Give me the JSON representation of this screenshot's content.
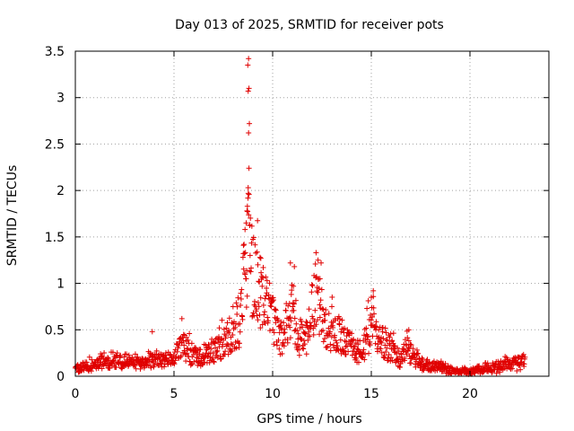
{
  "chart_data": {
    "type": "scatter",
    "title": "Day 013 of 2025, SRMTID for receiver pots",
    "xlabel": "GPS time / hours",
    "ylabel": "SRMTID / TECUs",
    "xlim": [
      0,
      24
    ],
    "ylim": [
      0,
      3.5
    ],
    "xticks": [
      0,
      5,
      10,
      15,
      20
    ],
    "yticks": [
      0,
      0.5,
      1,
      1.5,
      2,
      2.5,
      3,
      3.5
    ],
    "xtick_labels": [
      "0",
      "5",
      "10",
      "15",
      "20"
    ],
    "ytick_labels": [
      "0",
      "0.5",
      "1",
      "1.5",
      "2",
      "2.5",
      "3",
      "3.5"
    ],
    "grid": true,
    "marker": "+",
    "color": "#e00000",
    "series": [
      {
        "name": "SRMTID",
        "profile": [
          [
            0.0,
            0.08
          ],
          [
            0.5,
            0.11
          ],
          [
            1.0,
            0.13
          ],
          [
            1.5,
            0.15
          ],
          [
            2.0,
            0.16
          ],
          [
            2.5,
            0.15
          ],
          [
            3.0,
            0.14
          ],
          [
            3.5,
            0.15
          ],
          [
            4.0,
            0.17
          ],
          [
            4.5,
            0.16
          ],
          [
            5.0,
            0.2
          ],
          [
            5.4,
            0.34
          ],
          [
            5.8,
            0.26
          ],
          [
            6.2,
            0.2
          ],
          [
            6.6,
            0.22
          ],
          [
            7.0,
            0.28
          ],
          [
            7.5,
            0.36
          ],
          [
            8.0,
            0.42
          ],
          [
            8.3,
            0.55
          ],
          [
            8.5,
            0.9
          ],
          [
            8.75,
            1.5
          ],
          [
            9.0,
            1.05
          ],
          [
            9.3,
            0.95
          ],
          [
            9.6,
            0.8
          ],
          [
            10.0,
            0.6
          ],
          [
            10.4,
            0.42
          ],
          [
            10.7,
            0.55
          ],
          [
            11.0,
            0.75
          ],
          [
            11.3,
            0.45
          ],
          [
            11.7,
            0.4
          ],
          [
            12.0,
            0.7
          ],
          [
            12.3,
            0.85
          ],
          [
            12.6,
            0.55
          ],
          [
            13.0,
            0.5
          ],
          [
            13.4,
            0.45
          ],
          [
            13.8,
            0.35
          ],
          [
            14.2,
            0.28
          ],
          [
            14.6,
            0.3
          ],
          [
            15.0,
            0.55
          ],
          [
            15.3,
            0.4
          ],
          [
            15.7,
            0.35
          ],
          [
            16.0,
            0.3
          ],
          [
            16.4,
            0.17
          ],
          [
            16.8,
            0.28
          ],
          [
            17.2,
            0.2
          ],
          [
            17.6,
            0.12
          ],
          [
            18.0,
            0.1
          ],
          [
            18.4,
            0.13
          ],
          [
            18.8,
            0.07
          ],
          [
            19.2,
            0.05
          ],
          [
            19.6,
            0.05
          ],
          [
            20.0,
            0.05
          ],
          [
            20.5,
            0.07
          ],
          [
            21.0,
            0.09
          ],
          [
            21.5,
            0.11
          ],
          [
            22.0,
            0.13
          ],
          [
            22.5,
            0.15
          ],
          [
            22.8,
            0.17
          ]
        ],
        "spikes": [
          [
            8.78,
            3.42
          ],
          [
            8.74,
            3.35
          ],
          [
            8.8,
            3.1
          ],
          [
            8.76,
            3.07
          ],
          [
            8.82,
            2.72
          ],
          [
            8.78,
            2.62
          ],
          [
            8.8,
            2.24
          ],
          [
            8.76,
            2.03
          ],
          [
            8.72,
            1.83
          ],
          [
            8.7,
            1.78
          ],
          [
            8.66,
            1.65
          ],
          [
            8.6,
            1.58
          ],
          [
            8.52,
            1.41
          ],
          [
            8.84,
            1.63
          ],
          [
            9.4,
            1.27
          ],
          [
            9.25,
            1.2
          ],
          [
            10.9,
            1.22
          ],
          [
            11.1,
            1.18
          ],
          [
            12.2,
            1.33
          ],
          [
            12.3,
            1.25
          ],
          [
            12.4,
            1.05
          ],
          [
            13.0,
            0.75
          ],
          [
            15.1,
            0.92
          ],
          [
            15.0,
            0.85
          ],
          [
            5.4,
            0.62
          ],
          [
            3.9,
            0.48
          ],
          [
            16.9,
            0.5
          ],
          [
            7.3,
            0.52
          ]
        ]
      }
    ]
  }
}
